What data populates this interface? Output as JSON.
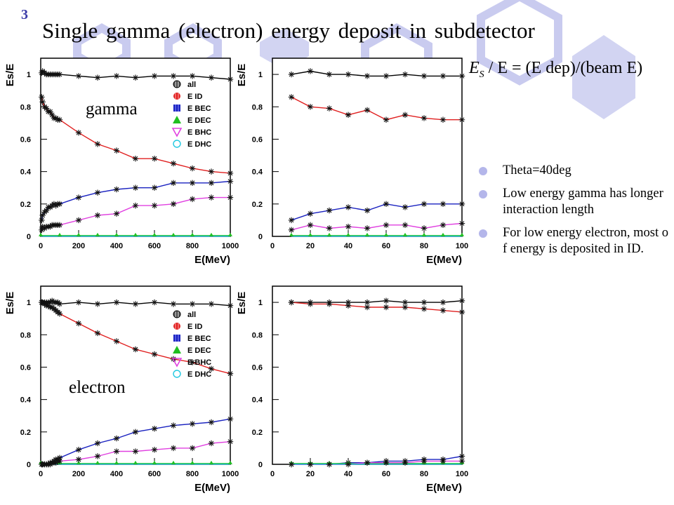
{
  "slide": {
    "number": "3",
    "title": "Single gamma (electron) energy deposit in subdetector",
    "formula": {
      "lhs_symbol": "E",
      "lhs_sub": "S",
      "rest": " / E = (E dep)/(beam E)"
    },
    "bullets": [
      "Theta=40deg",
      "Low energy gamma has longer interaction length",
      "For low energy electron, most of energy is deposited in ID."
    ]
  },
  "legend": {
    "entries": [
      "all",
      "E ID",
      "E BEC",
      "E DEC",
      "E BHC",
      "E DHC"
    ],
    "icons": [
      "circle-hatched-icon",
      "circle-icon",
      "square-icon",
      "triangle-up-icon",
      "triangle-down-icon",
      "open-circle-icon"
    ],
    "colors": [
      "#000000",
      "#e02020",
      "#1a22c0",
      "#20c020",
      "#e040e0",
      "#20c8e0"
    ]
  },
  "chart_data": [
    {
      "type": "line",
      "label": "gamma",
      "xlabel": "E(MeV)",
      "ylabel": "Es/E",
      "xlim": [
        0,
        1000
      ],
      "ylim": [
        0,
        1.1
      ],
      "xticks": [
        0,
        200,
        400,
        600,
        800,
        1000
      ],
      "yticks": [
        0,
        0.2,
        0.4,
        0.6,
        0.8,
        1
      ],
      "legend": true,
      "series": [
        {
          "name": "all",
          "color": "#000000",
          "x": [
            5,
            10,
            20,
            30,
            40,
            50,
            60,
            70,
            80,
            90,
            100,
            200,
            300,
            400,
            500,
            600,
            700,
            800,
            900,
            1000
          ],
          "y": [
            1.01,
            1.02,
            1.01,
            1.0,
            1.0,
            1.0,
            1.0,
            1.0,
            1.0,
            1.0,
            1.0,
            0.99,
            0.98,
            0.99,
            0.98,
            0.99,
            0.99,
            0.99,
            0.98,
            0.97
          ]
        },
        {
          "name": "E ID",
          "color": "#e02020",
          "x": [
            5,
            10,
            20,
            30,
            40,
            50,
            60,
            70,
            80,
            90,
            100,
            200,
            300,
            400,
            500,
            600,
            700,
            800,
            900,
            1000
          ],
          "y": [
            0.86,
            0.83,
            0.8,
            0.79,
            0.77,
            0.77,
            0.75,
            0.73,
            0.73,
            0.72,
            0.72,
            0.64,
            0.57,
            0.53,
            0.48,
            0.48,
            0.45,
            0.42,
            0.4,
            0.39
          ]
        },
        {
          "name": "E BEC",
          "color": "#1a22c0",
          "x": [
            5,
            10,
            20,
            30,
            40,
            50,
            60,
            70,
            80,
            90,
            100,
            200,
            300,
            400,
            500,
            600,
            700,
            800,
            900,
            1000
          ],
          "y": [
            0.1,
            0.13,
            0.15,
            0.16,
            0.18,
            0.18,
            0.19,
            0.2,
            0.19,
            0.2,
            0.2,
            0.24,
            0.27,
            0.29,
            0.3,
            0.3,
            0.33,
            0.33,
            0.33,
            0.34
          ]
        },
        {
          "name": "E DEC",
          "color": "#20c020",
          "x": [
            0,
            100,
            200,
            300,
            400,
            500,
            600,
            700,
            800,
            900,
            1000
          ],
          "y": [
            0.005,
            0.005,
            0.005,
            0.005,
            0.005,
            0.005,
            0.005,
            0.005,
            0.005,
            0.005,
            0.005
          ]
        },
        {
          "name": "E BHC",
          "color": "#e040e0",
          "x": [
            5,
            10,
            20,
            30,
            40,
            50,
            60,
            70,
            80,
            90,
            100,
            200,
            300,
            400,
            500,
            600,
            700,
            800,
            900,
            1000
          ],
          "y": [
            0.04,
            0.06,
            0.05,
            0.06,
            0.06,
            0.06,
            0.07,
            0.07,
            0.07,
            0.07,
            0.07,
            0.1,
            0.13,
            0.14,
            0.19,
            0.19,
            0.2,
            0.23,
            0.24,
            0.24
          ]
        },
        {
          "name": "E DHC",
          "color": "#20c8e0",
          "x": [
            0,
            100,
            200,
            300,
            400,
            500,
            600,
            700,
            800,
            900,
            1000
          ],
          "y": [
            0.001,
            0.001,
            0.001,
            0.001,
            0.001,
            0.001,
            0.001,
            0.001,
            0.001,
            0.001,
            0.001
          ]
        }
      ]
    },
    {
      "type": "line",
      "label": "",
      "xlabel": "E(MeV)",
      "ylabel": "Es/E",
      "xlim": [
        0,
        100
      ],
      "ylim": [
        0,
        1.1
      ],
      "xticks": [
        0,
        20,
        40,
        60,
        80,
        100
      ],
      "yticks": [
        0,
        0.2,
        0.4,
        0.6,
        0.8,
        1
      ],
      "legend": false,
      "series": [
        {
          "name": "all",
          "color": "#000000",
          "x": [
            10,
            20,
            30,
            40,
            50,
            60,
            70,
            80,
            90,
            100
          ],
          "y": [
            1.0,
            1.02,
            1.0,
            1.0,
            0.99,
            0.99,
            1.0,
            0.99,
            0.99,
            0.99
          ]
        },
        {
          "name": "E ID",
          "color": "#e02020",
          "x": [
            10,
            20,
            30,
            40,
            50,
            60,
            70,
            80,
            90,
            100
          ],
          "y": [
            0.86,
            0.8,
            0.79,
            0.75,
            0.78,
            0.72,
            0.75,
            0.73,
            0.72,
            0.72
          ]
        },
        {
          "name": "E BEC",
          "color": "#1a22c0",
          "x": [
            10,
            20,
            30,
            40,
            50,
            60,
            70,
            80,
            90,
            100
          ],
          "y": [
            0.1,
            0.14,
            0.16,
            0.18,
            0.16,
            0.2,
            0.18,
            0.2,
            0.2,
            0.2
          ]
        },
        {
          "name": "E DEC",
          "color": "#20c020",
          "x": [
            10,
            20,
            30,
            40,
            50,
            60,
            70,
            80,
            90,
            100
          ],
          "y": [
            0.005,
            0.005,
            0.005,
            0.005,
            0.005,
            0.005,
            0.005,
            0.005,
            0.005,
            0.005
          ]
        },
        {
          "name": "E BHC",
          "color": "#e040e0",
          "x": [
            10,
            20,
            30,
            40,
            50,
            60,
            70,
            80,
            90,
            100
          ],
          "y": [
            0.04,
            0.07,
            0.05,
            0.06,
            0.05,
            0.07,
            0.07,
            0.05,
            0.07,
            0.08
          ]
        },
        {
          "name": "E DHC",
          "color": "#20c8e0",
          "x": [
            10,
            20,
            30,
            40,
            50,
            60,
            70,
            80,
            90,
            100
          ],
          "y": [
            0.001,
            0.001,
            0.001,
            0.001,
            0.001,
            0.001,
            0.001,
            0.001,
            0.001,
            0.001
          ]
        }
      ]
    },
    {
      "type": "line",
      "label": "electron",
      "xlabel": "E(MeV)",
      "ylabel": "Es/E",
      "xlim": [
        0,
        1000
      ],
      "ylim": [
        0,
        1.1
      ],
      "xticks": [
        0,
        200,
        400,
        600,
        800,
        1000
      ],
      "yticks": [
        0,
        0.2,
        0.4,
        0.6,
        0.8,
        1
      ],
      "legend": true,
      "series": [
        {
          "name": "all",
          "color": "#000000",
          "x": [
            5,
            10,
            20,
            30,
            40,
            50,
            60,
            70,
            80,
            90,
            100,
            200,
            300,
            400,
            500,
            600,
            700,
            800,
            900,
            1000
          ],
          "y": [
            1.0,
            1.0,
            1.0,
            1.0,
            1.0,
            1.0,
            1.01,
            1.0,
            1.0,
            1.0,
            0.99,
            1.0,
            0.99,
            1.0,
            0.99,
            1.0,
            0.99,
            0.99,
            0.99,
            0.98
          ]
        },
        {
          "name": "E ID",
          "color": "#e02020",
          "x": [
            5,
            10,
            20,
            30,
            40,
            50,
            60,
            70,
            80,
            90,
            100,
            200,
            300,
            400,
            500,
            600,
            700,
            800,
            900,
            1000
          ],
          "y": [
            1.0,
            1.0,
            0.99,
            0.98,
            0.98,
            0.97,
            0.97,
            0.96,
            0.95,
            0.94,
            0.93,
            0.87,
            0.81,
            0.76,
            0.71,
            0.68,
            0.65,
            0.63,
            0.59,
            0.56
          ]
        },
        {
          "name": "E BEC",
          "color": "#1a22c0",
          "x": [
            5,
            10,
            20,
            30,
            40,
            50,
            60,
            70,
            80,
            90,
            100,
            200,
            300,
            400,
            500,
            600,
            700,
            800,
            900,
            1000
          ],
          "y": [
            0.0,
            0.0,
            0.0,
            0.0,
            0.0,
            0.01,
            0.01,
            0.02,
            0.03,
            0.03,
            0.04,
            0.09,
            0.13,
            0.16,
            0.2,
            0.22,
            0.24,
            0.25,
            0.26,
            0.28
          ]
        },
        {
          "name": "E DEC",
          "color": "#20c020",
          "x": [
            0,
            100,
            200,
            300,
            400,
            500,
            600,
            700,
            800,
            900,
            1000
          ],
          "y": [
            0.005,
            0.005,
            0.005,
            0.005,
            0.005,
            0.005,
            0.005,
            0.005,
            0.005,
            0.005,
            0.005
          ]
        },
        {
          "name": "E BHC",
          "color": "#e040e0",
          "x": [
            5,
            10,
            20,
            30,
            40,
            50,
            60,
            70,
            80,
            90,
            100,
            200,
            300,
            400,
            500,
            600,
            700,
            800,
            900,
            1000
          ],
          "y": [
            0.0,
            0.0,
            0.0,
            0.0,
            0.0,
            0.0,
            0.01,
            0.01,
            0.01,
            0.02,
            0.02,
            0.03,
            0.05,
            0.08,
            0.08,
            0.09,
            0.1,
            0.1,
            0.13,
            0.14
          ]
        },
        {
          "name": "E DHC",
          "color": "#20c8e0",
          "x": [
            0,
            100,
            200,
            300,
            400,
            500,
            600,
            700,
            800,
            900,
            1000
          ],
          "y": [
            0.001,
            0.001,
            0.001,
            0.001,
            0.001,
            0.001,
            0.001,
            0.001,
            0.001,
            0.001,
            0.001
          ]
        }
      ]
    },
    {
      "type": "line",
      "label": "",
      "xlabel": "E(MeV)",
      "ylabel": "Es/E",
      "xlim": [
        0,
        100
      ],
      "ylim": [
        0,
        1.1
      ],
      "xticks": [
        0,
        20,
        40,
        60,
        80,
        100
      ],
      "yticks": [
        0,
        0.2,
        0.4,
        0.6,
        0.8,
        1
      ],
      "legend": false,
      "series": [
        {
          "name": "all",
          "color": "#000000",
          "x": [
            10,
            20,
            30,
            40,
            50,
            60,
            70,
            80,
            90,
            100
          ],
          "y": [
            1.0,
            1.0,
            1.0,
            1.0,
            1.0,
            1.01,
            1.0,
            1.0,
            1.0,
            1.01
          ]
        },
        {
          "name": "E ID",
          "color": "#e02020",
          "x": [
            10,
            20,
            30,
            40,
            50,
            60,
            70,
            80,
            90,
            100
          ],
          "y": [
            1.0,
            0.99,
            0.99,
            0.98,
            0.97,
            0.97,
            0.97,
            0.96,
            0.95,
            0.94
          ]
        },
        {
          "name": "E BEC",
          "color": "#1a22c0",
          "x": [
            10,
            20,
            30,
            40,
            50,
            60,
            70,
            80,
            90,
            100
          ],
          "y": [
            0.0,
            0.0,
            0.0,
            0.01,
            0.01,
            0.02,
            0.02,
            0.03,
            0.03,
            0.05
          ]
        },
        {
          "name": "E DEC",
          "color": "#20c020",
          "x": [
            10,
            20,
            30,
            40,
            50,
            60,
            70,
            80,
            90,
            100
          ],
          "y": [
            0.005,
            0.005,
            0.005,
            0.005,
            0.005,
            0.005,
            0.005,
            0.005,
            0.005,
            0.005
          ]
        },
        {
          "name": "E BHC",
          "color": "#e040e0",
          "x": [
            10,
            20,
            30,
            40,
            50,
            60,
            70,
            80,
            90,
            100
          ],
          "y": [
            0.0,
            0.0,
            0.0,
            0.0,
            0.01,
            0.01,
            0.01,
            0.02,
            0.02,
            0.02
          ]
        },
        {
          "name": "E DHC",
          "color": "#20c8e0",
          "x": [
            10,
            20,
            30,
            40,
            50,
            60,
            70,
            80,
            90,
            100
          ],
          "y": [
            0.001,
            0.001,
            0.001,
            0.001,
            0.001,
            0.001,
            0.001,
            0.001,
            0.001,
            0.001
          ]
        }
      ]
    }
  ]
}
